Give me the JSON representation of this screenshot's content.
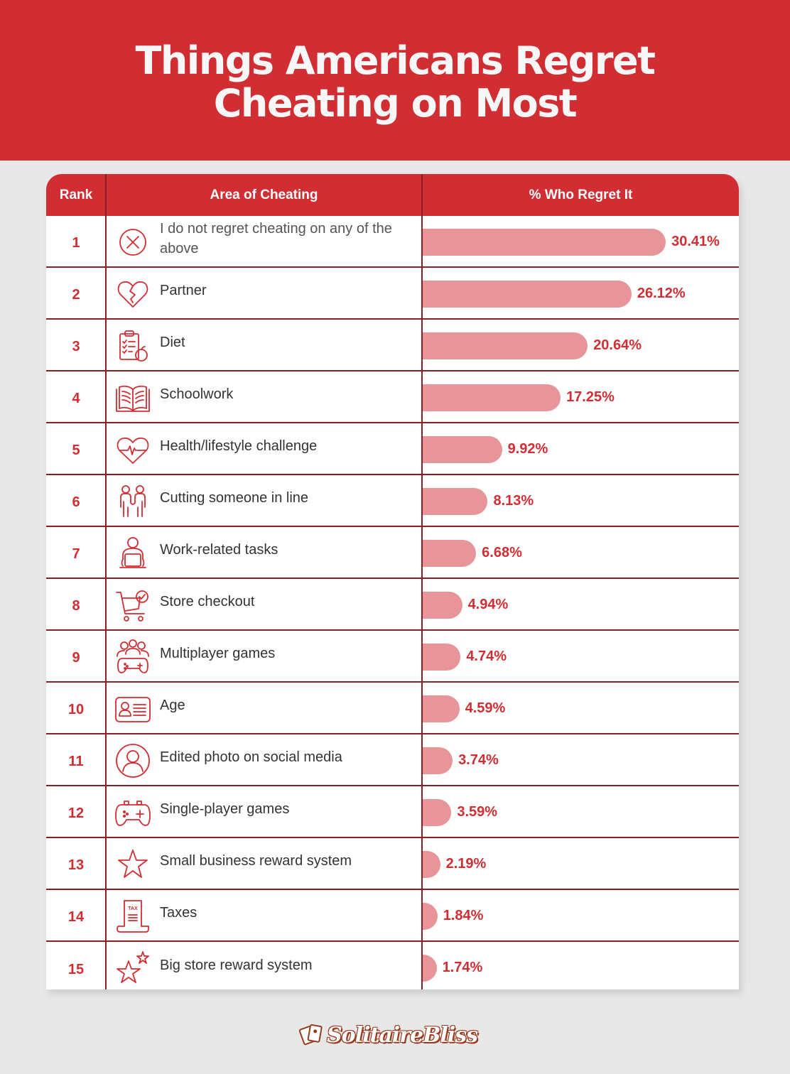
{
  "title": "Things Americans Regret Cheating on Most",
  "colors": {
    "brand_red": "#d12e33",
    "bar_pink": "#e79598",
    "divider": "#8c1d22",
    "background": "#e8e8e8"
  },
  "table": {
    "headers": {
      "rank": "Rank",
      "area": "Area of Cheating",
      "pct": "% Who Regret It"
    },
    "rows": [
      {
        "rank": "1",
        "icon": "circle-x-icon",
        "label": "I do not regret cheating on any of the above",
        "value": 30.41,
        "value_label": "30.41%"
      },
      {
        "rank": "2",
        "icon": "broken-heart-icon",
        "label": "Partner",
        "value": 26.12,
        "value_label": "26.12%"
      },
      {
        "rank": "3",
        "icon": "clipboard-apple-icon",
        "label": "Diet",
        "value": 20.64,
        "value_label": "20.64%"
      },
      {
        "rank": "4",
        "icon": "open-book-icon",
        "label": "Schoolwork",
        "value": 17.25,
        "value_label": "17.25%"
      },
      {
        "rank": "5",
        "icon": "heartbeat-icon",
        "label": "Health/lifestyle challenge",
        "value": 9.92,
        "value_label": "9.92%"
      },
      {
        "rank": "6",
        "icon": "two-people-icon",
        "label": "Cutting someone in line",
        "value": 8.13,
        "value_label": "8.13%"
      },
      {
        "rank": "7",
        "icon": "person-laptop-icon",
        "label": "Work-related tasks",
        "value": 6.68,
        "value_label": "6.68%"
      },
      {
        "rank": "8",
        "icon": "cart-check-icon",
        "label": "Store checkout",
        "value": 4.94,
        "value_label": "4.94%"
      },
      {
        "rank": "9",
        "icon": "group-gamepad-icon",
        "label": "Multiplayer games",
        "value": 4.74,
        "value_label": "4.74%"
      },
      {
        "rank": "10",
        "icon": "id-card-icon",
        "label": "Age",
        "value": 4.59,
        "value_label": "4.59%"
      },
      {
        "rank": "11",
        "icon": "profile-circle-icon",
        "label": "Edited photo on social media",
        "value": 3.74,
        "value_label": "3.74%"
      },
      {
        "rank": "12",
        "icon": "gamepad-icon",
        "label": "Single-player games",
        "value": 3.59,
        "value_label": "3.59%"
      },
      {
        "rank": "13",
        "icon": "star-icon",
        "label": "Small business reward system",
        "value": 2.19,
        "value_label": "2.19%"
      },
      {
        "rank": "14",
        "icon": "tax-document-icon",
        "label": "Taxes",
        "value": 1.84,
        "value_label": "1.84%"
      },
      {
        "rank": "15",
        "icon": "two-stars-icon",
        "label": "Big store reward system",
        "value": 1.74,
        "value_label": "1.74%"
      }
    ]
  },
  "footer": {
    "logo_text": "SolitaireBliss"
  },
  "chart_data": {
    "type": "bar",
    "orientation": "horizontal",
    "title": "Things Americans Regret Cheating on Most",
    "xlabel": "% Who Regret It",
    "ylabel": "Area of Cheating",
    "categories": [
      "I do not regret cheating on any of the above",
      "Partner",
      "Diet",
      "Schoolwork",
      "Health/lifestyle challenge",
      "Cutting someone in line",
      "Work-related tasks",
      "Store checkout",
      "Multiplayer games",
      "Age",
      "Edited photo on social media",
      "Single-player games",
      "Small business reward system",
      "Taxes",
      "Big store reward system"
    ],
    "values": [
      30.41,
      26.12,
      20.64,
      17.25,
      9.92,
      8.13,
      6.68,
      4.94,
      4.74,
      4.59,
      3.74,
      3.59,
      2.19,
      1.84,
      1.74
    ],
    "ranks": [
      1,
      2,
      3,
      4,
      5,
      6,
      7,
      8,
      9,
      10,
      11,
      12,
      13,
      14,
      15
    ],
    "unit": "%",
    "grid": false,
    "legend": "none",
    "data_labels": true
  }
}
